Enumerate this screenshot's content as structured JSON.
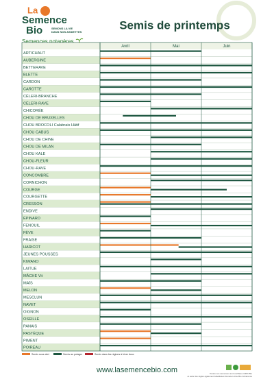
{
  "header": {
    "logo": [
      "La",
      "Semence",
      "Bio"
    ],
    "tagline": [
      "SEMONS LA VIE",
      "DANS NOS ASSIETTES"
    ],
    "title": "Semis de printemps"
  },
  "section": "Semences potagères",
  "months": [
    "Avril",
    "Mai",
    "Juin"
  ],
  "legend": [
    {
      "label": "Semis sous abri",
      "color": "#e8782a"
    },
    {
      "label": "Semis au potager",
      "color": "#1d5640"
    },
    {
      "label": "Semis dans les régions à hiver doux",
      "color": "#b3262e"
    }
  ],
  "rows": [
    {
      "name": "ARTICHAUT",
      "bars": [
        {
          "legend": 1,
          "from": 0,
          "to": 2
        }
      ]
    },
    {
      "name": "AUBERGINE",
      "bars": [
        {
          "legend": 0,
          "from": 0,
          "to": 1
        }
      ]
    },
    {
      "name": "BETTERAVE",
      "bars": [
        {
          "legend": 1,
          "from": 0,
          "to": 3
        }
      ]
    },
    {
      "name": "BLETTE",
      "bars": [
        {
          "legend": 1,
          "from": 0,
          "to": 3
        }
      ]
    },
    {
      "name": "CARDON",
      "bars": [
        {
          "legend": 1,
          "from": 0,
          "to": 2
        }
      ]
    },
    {
      "name": "CAROTTE",
      "bars": [
        {
          "legend": 1,
          "from": 0,
          "to": 3
        }
      ]
    },
    {
      "name": "CÉLERI-BRANCHE",
      "bars": [
        {
          "legend": 1,
          "from": 0,
          "to": 2
        }
      ]
    },
    {
      "name": "CÉLERI-RAVE",
      "bars": [
        {
          "legend": 1,
          "from": 0,
          "to": 1
        }
      ]
    },
    {
      "name": "CHICORÉE",
      "bars": [
        {
          "legend": 1,
          "from": 1,
          "to": 3
        }
      ]
    },
    {
      "name": "CHOU DE BRUXELLES",
      "bars": [
        {
          "legend": 1,
          "from": 0.45,
          "to": 1.5
        }
      ]
    },
    {
      "name": "CHOU BROCOLI Calabrais Hâtif",
      "bars": [
        {
          "legend": 1,
          "from": 0,
          "to": 3
        }
      ]
    },
    {
      "name": "CHOU CABUS",
      "bars": [
        {
          "legend": 1,
          "from": 0,
          "to": 3
        }
      ]
    },
    {
      "name": "CHOU DE CHINE",
      "bars": [
        {
          "legend": 1,
          "from": 1,
          "to": 3
        }
      ]
    },
    {
      "name": "CHOU DE MILAN",
      "bars": [
        {
          "legend": 1,
          "from": 0,
          "to": 2
        }
      ]
    },
    {
      "name": "CHOU KALE",
      "bars": [
        {
          "legend": 1,
          "from": 1,
          "to": 3
        }
      ]
    },
    {
      "name": "CHOU-FLEUR",
      "bars": [
        {
          "legend": 1,
          "from": 1,
          "to": 3
        }
      ]
    },
    {
      "name": "CHOU-RAVE",
      "bars": [
        {
          "legend": 1,
          "from": 0,
          "to": 3
        }
      ]
    },
    {
      "name": "CONCOMBRE",
      "bars": [
        {
          "legend": 0,
          "from": 0,
          "to": 1
        },
        {
          "legend": 1,
          "from": 1,
          "to": 3
        }
      ]
    },
    {
      "name": "CORNICHON",
      "bars": [
        {
          "legend": 1,
          "from": 1,
          "to": 3
        }
      ]
    },
    {
      "name": "COURGE",
      "bars": [
        {
          "legend": 0,
          "from": 0,
          "to": 1
        },
        {
          "legend": 1,
          "from": 1,
          "to": 2.5
        }
      ]
    },
    {
      "name": "COURGETTE",
      "bars": [
        {
          "legend": 0,
          "from": 0,
          "to": 1
        },
        {
          "legend": 1,
          "from": 1,
          "to": 3
        }
      ]
    },
    {
      "name": "CRESSON",
      "bars": [
        {
          "legend": 0,
          "from": 0,
          "to": 1
        },
        {
          "legend": 1,
          "from": 0,
          "to": 3
        }
      ]
    },
    {
      "name": "ENDIVE",
      "bars": [
        {
          "legend": 1,
          "from": 1,
          "to": 3
        }
      ]
    },
    {
      "name": "ÉPINARD",
      "bars": [
        {
          "legend": 1,
          "from": 0,
          "to": 1
        }
      ]
    },
    {
      "name": "FENOUIL",
      "bars": [
        {
          "legend": 0,
          "from": 0,
          "to": 1
        },
        {
          "legend": 1,
          "from": 1,
          "to": 3
        }
      ]
    },
    {
      "name": "FÈVE",
      "bars": [
        {
          "legend": 1,
          "from": 0,
          "to": 1
        }
      ]
    },
    {
      "name": "FRAISE",
      "bars": [
        {
          "legend": 1,
          "from": 0,
          "to": 2
        }
      ]
    },
    {
      "name": "HARICOT",
      "bars": [
        {
          "legend": 0,
          "from": 0,
          "to": 1.55
        },
        {
          "legend": 1,
          "from": 1.55,
          "to": 3
        }
      ]
    },
    {
      "name": "JEUNES POUSSES",
      "bars": [
        {
          "legend": 1,
          "from": 0,
          "to": 3
        }
      ]
    },
    {
      "name": "KIWANO",
      "bars": [
        {
          "legend": 1,
          "from": 1,
          "to": 2
        }
      ]
    },
    {
      "name": "LAITUE",
      "bars": [
        {
          "legend": 1,
          "from": 0,
          "to": 3
        }
      ]
    },
    {
      "name": "MÂCHE Vit",
      "bars": [
        {
          "legend": 1,
          "from": 1,
          "to": 3
        }
      ]
    },
    {
      "name": "MAÏS",
      "bars": [
        {
          "legend": 1,
          "from": 0,
          "to": 2
        }
      ]
    },
    {
      "name": "MELON",
      "bars": [
        {
          "legend": 0,
          "from": 0,
          "to": 1
        },
        {
          "legend": 1,
          "from": 1,
          "to": 2
        }
      ]
    },
    {
      "name": "MESCLUN",
      "bars": [
        {
          "legend": 1,
          "from": 0,
          "to": 3
        }
      ]
    },
    {
      "name": "NAVET",
      "bars": [
        {
          "legend": 1,
          "from": 0,
          "to": 3
        }
      ]
    },
    {
      "name": "OIGNON",
      "bars": [
        {
          "legend": 1,
          "from": 0,
          "to": 1
        }
      ]
    },
    {
      "name": "OSEILLE",
      "bars": [
        {
          "legend": 1,
          "from": 0,
          "to": 3
        }
      ]
    },
    {
      "name": "PANAIS",
      "bars": [
        {
          "legend": 1,
          "from": 0,
          "to": 2
        }
      ]
    },
    {
      "name": "PASTÈQUE",
      "bars": [
        {
          "legend": 0,
          "from": 0,
          "to": 1
        },
        {
          "legend": 1,
          "from": 1,
          "to": 2
        }
      ]
    },
    {
      "name": "PIMENT",
      "bars": [
        {
          "legend": 0,
          "from": 0,
          "to": 1
        }
      ]
    },
    {
      "name": "POIREAU",
      "bars": [
        {
          "legend": 1,
          "from": 0,
          "to": 3
        }
      ]
    }
  ],
  "footer": {
    "url": "www.lasemencebio.com",
    "note": [
      "Toutes nos semences sont certifiées 100% Bio",
      "et selon les règles également labellisées Demeter et/ou Bio Cohérence"
    ]
  }
}
